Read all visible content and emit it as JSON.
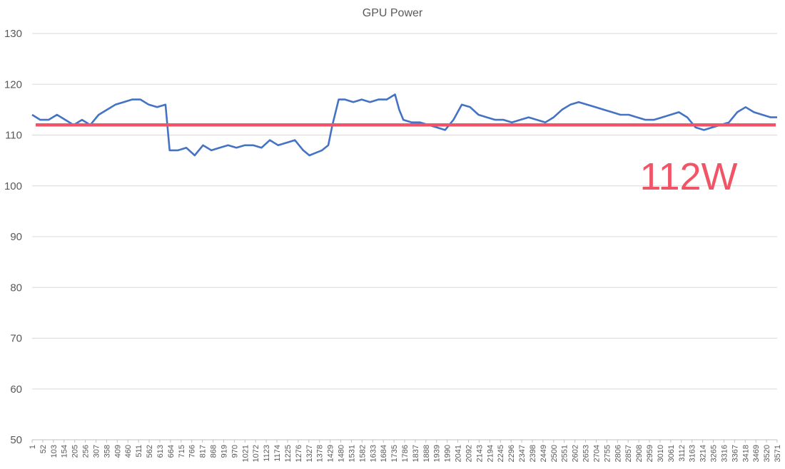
{
  "chart_data": {
    "type": "line",
    "title": "GPU Power",
    "xlabel": "",
    "ylabel": "",
    "ylim": [
      50,
      130
    ],
    "yticks": [
      50,
      60,
      70,
      80,
      90,
      100,
      110,
      120,
      130
    ],
    "xlim": [
      1,
      3571
    ],
    "xticks": [
      1,
      52,
      103,
      154,
      205,
      256,
      307,
      358,
      409,
      460,
      511,
      562,
      613,
      664,
      715,
      766,
      817,
      868,
      919,
      970,
      1021,
      1072,
      1123,
      1174,
      1225,
      1276,
      1327,
      1378,
      1429,
      1480,
      1531,
      1582,
      1633,
      1684,
      1735,
      1786,
      1837,
      1888,
      1939,
      1990,
      2041,
      2092,
      2143,
      2194,
      2245,
      2296,
      2347,
      2398,
      2449,
      2500,
      2551,
      2602,
      2653,
      2704,
      2755,
      2806,
      2857,
      2908,
      2959,
      3010,
      3061,
      3112,
      3163,
      3214,
      3265,
      3316,
      3367,
      3418,
      3469,
      3520,
      3571
    ],
    "grid": true,
    "legend": "none",
    "colors": {
      "series": "#4472c4",
      "average": "#f05466"
    },
    "series": [
      {
        "x": [
          1,
          40,
          80,
          120,
          160,
          200,
          240,
          280,
          300,
          320,
          360,
          400,
          440,
          480,
          520,
          560,
          600,
          640,
          660,
          700,
          740,
          780,
          820,
          860,
          900,
          940,
          980,
          1020,
          1060,
          1100,
          1140,
          1180,
          1220,
          1260,
          1300,
          1330,
          1360,
          1390,
          1420,
          1440,
          1470,
          1500,
          1540,
          1580,
          1620,
          1660,
          1700,
          1740,
          1760,
          1780,
          1820,
          1860,
          1900,
          1940,
          1980,
          2020,
          2060,
          2100,
          2140,
          2180,
          2220,
          2260,
          2300,
          2340,
          2380,
          2420,
          2460,
          2500,
          2540,
          2580,
          2620,
          2660,
          2700,
          2740,
          2780,
          2820,
          2860,
          2900,
          2940,
          2980,
          3020,
          3060,
          3100,
          3140,
          3180,
          3220,
          3260,
          3300,
          3340,
          3380,
          3420,
          3460,
          3500,
          3540,
          3571
        ],
        "y": [
          114,
          113,
          113,
          114,
          113,
          112,
          113,
          112,
          113,
          114,
          115,
          116,
          116.5,
          117,
          117,
          116,
          115.5,
          116,
          107,
          107,
          107.5,
          106,
          108,
          107,
          107.5,
          108,
          107.5,
          108,
          108,
          107.5,
          109,
          108,
          108.5,
          109,
          107,
          106,
          106.5,
          107,
          108,
          112,
          117,
          117,
          116.5,
          117,
          116.5,
          117,
          117,
          118,
          115,
          113,
          112.5,
          112.5,
          112,
          111.5,
          111,
          113,
          116,
          115.5,
          114,
          113.5,
          113,
          113,
          112.5,
          113,
          113.5,
          113,
          112.5,
          113.5,
          115,
          116,
          116.5,
          116,
          115.5,
          115,
          114.5,
          114,
          114,
          113.5,
          113,
          113,
          113.5,
          114,
          114.5,
          113.5,
          111.5,
          111,
          111.5,
          112,
          112.5,
          114.5,
          115.5,
          114.5,
          114,
          113.5,
          113.5
        ]
      }
    ],
    "average": {
      "value": 112,
      "label": "112W"
    }
  }
}
